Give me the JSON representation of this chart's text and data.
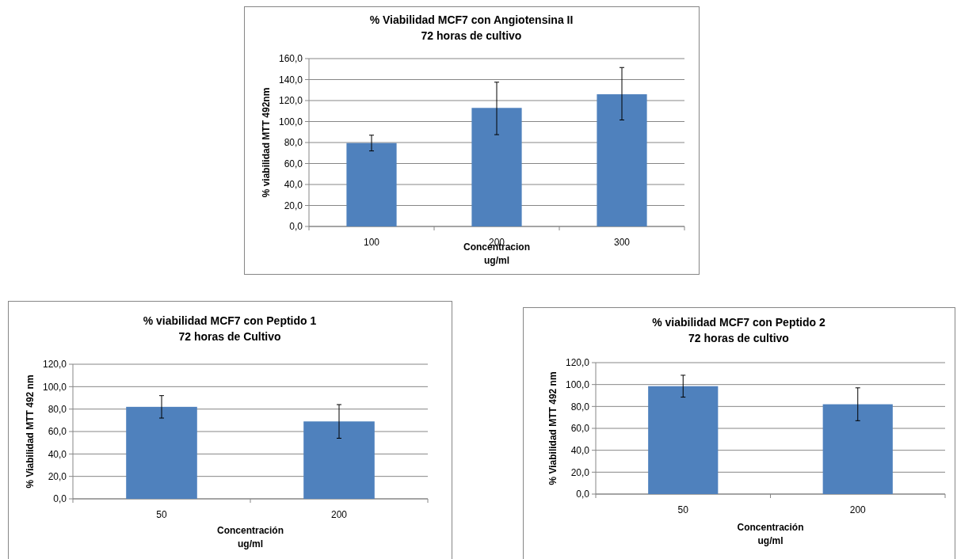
{
  "chart_data": [
    {
      "type": "bar",
      "title": "% Viabilidad MCF7 con Angiotensina II\n72 horas de cultivo",
      "xlabel": "Concentracion\nug/ml",
      "ylabel": "% viabilidad  MTT  492nm",
      "categories": [
        "100",
        "200",
        "300"
      ],
      "values": [
        79.5,
        113,
        126
      ],
      "errors": [
        [
          72,
          87
        ],
        [
          87.5,
          137.5
        ],
        [
          101.5,
          151.5
        ]
      ],
      "color": "#4f81bd",
      "ylim": [
        0,
        160
      ],
      "yticks": [
        {
          "value": 0,
          "label": "0,0"
        },
        {
          "value": 20,
          "label": "20,0"
        },
        {
          "value": 40,
          "label": "40,0"
        },
        {
          "value": 60,
          "label": "60,0"
        },
        {
          "value": 80,
          "label": "80,0"
        },
        {
          "value": 100,
          "label": "100,0"
        },
        {
          "value": 120,
          "label": "120,0"
        },
        {
          "value": 140,
          "label": "140,0"
        },
        {
          "value": 160,
          "label": "160,0"
        }
      ],
      "grid": "y"
    },
    {
      "type": "bar",
      "title": "% viabilidad MCF7 con Peptido 1\n72 horas de Cultivo",
      "xlabel": "Concentración\nug/ml",
      "ylabel": "% Viabilidad MTT  492 nm",
      "categories": [
        "50",
        "200"
      ],
      "values": [
        82,
        69
      ],
      "errors": [
        [
          72,
          92
        ],
        [
          54,
          84
        ]
      ],
      "color": "#4f81bd",
      "ylim": [
        0,
        120
      ],
      "yticks": [
        {
          "value": 0,
          "label": "0,0"
        },
        {
          "value": 20,
          "label": "20,0"
        },
        {
          "value": 40,
          "label": "40,0"
        },
        {
          "value": 60,
          "label": "60,0"
        },
        {
          "value": 80,
          "label": "80,0"
        },
        {
          "value": 100,
          "label": "100,0"
        },
        {
          "value": 120,
          "label": "120,0"
        }
      ],
      "grid": "y"
    },
    {
      "type": "bar",
      "title": "% viabilidad MCF7 con Peptido 2\n72 horas de cultivo",
      "xlabel": "Concentración\nug/ml",
      "ylabel": "% Viabilidad  MTT  492 nm",
      "categories": [
        "50",
        "200"
      ],
      "values": [
        98.5,
        82
      ],
      "errors": [
        [
          88.5,
          108.5
        ],
        [
          67,
          97
        ]
      ],
      "color": "#4f81bd",
      "ylim": [
        0,
        120
      ],
      "yticks": [
        {
          "value": 0,
          "label": "0,0"
        },
        {
          "value": 20,
          "label": "20,0"
        },
        {
          "value": 40,
          "label": "40,0"
        },
        {
          "value": 60,
          "label": "60,0"
        },
        {
          "value": 80,
          "label": "80,0"
        },
        {
          "value": 100,
          "label": "100,0"
        },
        {
          "value": 120,
          "label": "120,0"
        }
      ],
      "grid": "y"
    }
  ]
}
